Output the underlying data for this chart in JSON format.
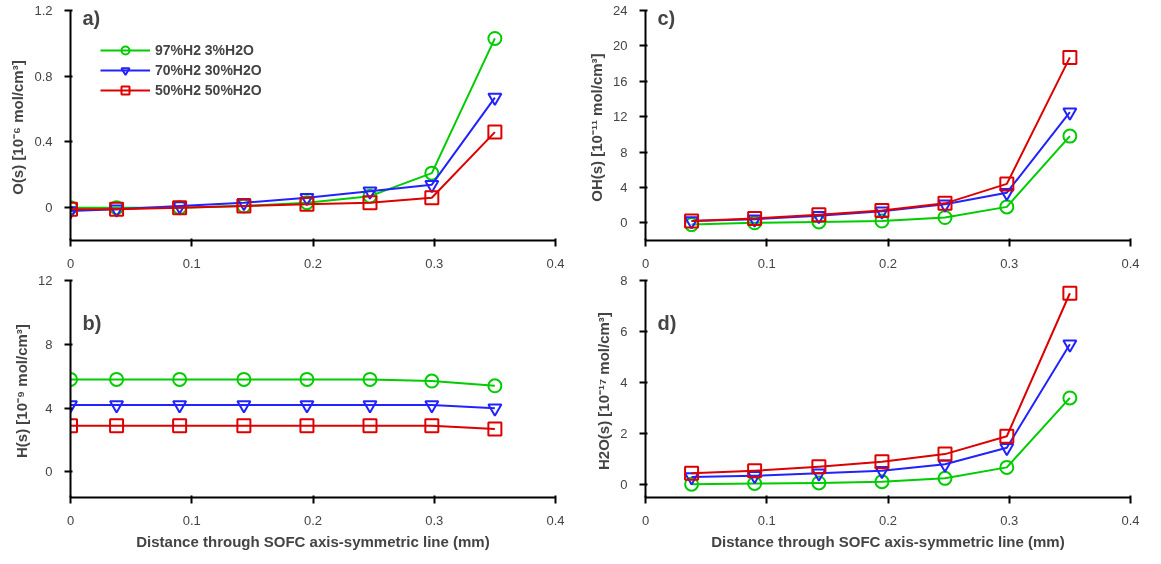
{
  "chart_data": [
    {
      "type": "line",
      "ylabel": "O(s)  [10⁻⁶ mol/cm³]",
      "annotations": [
        "a)"
      ],
      "xlim": [
        0,
        0.4
      ],
      "xticks": [
        0,
        0.1,
        0.2,
        0.3,
        0.4
      ],
      "ylim": [
        -0.2,
        1.2
      ],
      "yticks": [
        0,
        0.4,
        0.8,
        1.2
      ],
      "grid": false,
      "legend": "top left",
      "x": [
        0,
        0.038,
        0.09,
        0.143,
        0.195,
        0.247,
        0.298,
        0.35
      ],
      "series": [
        {
          "name": "97%H2 3%H2O",
          "color": "#00cc00",
          "marker": "circle",
          "values": [
            0,
            0,
            0,
            0.01,
            0.03,
            0.07,
            0.21,
            1.03
          ]
        },
        {
          "name": "70%H2 30%H2O",
          "color": "#2222ff",
          "marker": "triangle",
          "values": [
            -0.02,
            -0.01,
            0.01,
            0.03,
            0.06,
            0.1,
            0.14,
            0.67
          ]
        },
        {
          "name": "50%H2 50%H2O",
          "color": "#dd0000",
          "marker": "square",
          "values": [
            -0.01,
            -0.01,
            0,
            0.01,
            0.02,
            0.03,
            0.06,
            0.46
          ]
        }
      ]
    },
    {
      "type": "line",
      "ylabel": "OH(s)  [10⁻¹¹ mol/cm³]",
      "annotations": [
        "c)"
      ],
      "xlim": [
        0,
        0.4
      ],
      "xticks": [
        0,
        0.1,
        0.2,
        0.3,
        0.4
      ],
      "ylim": [
        -2,
        24
      ],
      "yticks": [
        0,
        4,
        8,
        12,
        16,
        20,
        24
      ],
      "grid": false,
      "x": [
        0.038,
        0.09,
        0.143,
        0.195,
        0.247,
        0.298,
        0.35
      ],
      "series": [
        {
          "color": "#00cc00",
          "marker": "circle",
          "values": [
            -0.2,
            0,
            0.1,
            0.2,
            0.6,
            1.8,
            9.8
          ]
        },
        {
          "color": "#2222ff",
          "marker": "triangle",
          "values": [
            0.2,
            0.4,
            0.8,
            1.3,
            2.1,
            3.4,
            12.5
          ]
        },
        {
          "color": "#dd0000",
          "marker": "square",
          "values": [
            0.2,
            0.5,
            0.9,
            1.4,
            2.2,
            4.4,
            18.7
          ]
        }
      ]
    },
    {
      "type": "line",
      "xlabel": "Distance through SOFC axis-symmetric line (mm)",
      "ylabel": "H(s)  [10⁻⁹ mol/cm³]",
      "annotations": [
        "b)"
      ],
      "xlim": [
        0,
        0.4
      ],
      "xticks": [
        0,
        0.1,
        0.2,
        0.3,
        0.4
      ],
      "ylim": [
        -1.6,
        12
      ],
      "yticks": [
        0,
        4,
        8,
        12
      ],
      "grid": false,
      "x": [
        0,
        0.038,
        0.09,
        0.143,
        0.195,
        0.247,
        0.298,
        0.35
      ],
      "series": [
        {
          "color": "#00cc00",
          "marker": "circle",
          "values": [
            5.8,
            5.8,
            5.8,
            5.8,
            5.8,
            5.8,
            5.7,
            5.4
          ]
        },
        {
          "color": "#2222ff",
          "marker": "triangle",
          "values": [
            4.2,
            4.2,
            4.2,
            4.2,
            4.2,
            4.2,
            4.2,
            4.0
          ]
        },
        {
          "color": "#dd0000",
          "marker": "square",
          "values": [
            2.9,
            2.9,
            2.9,
            2.9,
            2.9,
            2.9,
            2.9,
            2.7
          ]
        }
      ]
    },
    {
      "type": "line",
      "xlabel": "Distance through SOFC axis-symmetric line (mm)",
      "ylabel": "H2O(s)  [10⁻¹⁷ mol/cm³]",
      "annotations": [
        "d)"
      ],
      "xlim": [
        0,
        0.4
      ],
      "xticks": [
        0,
        0.1,
        0.2,
        0.3,
        0.4
      ],
      "ylim": [
        -0.5,
        8
      ],
      "yticks": [
        0,
        2,
        4,
        6,
        8
      ],
      "grid": false,
      "x": [
        0.038,
        0.09,
        0.143,
        0.195,
        0.247,
        0.298,
        0.35
      ],
      "series": [
        {
          "color": "#00cc00",
          "marker": "circle",
          "values": [
            0.02,
            0.05,
            0.07,
            0.12,
            0.25,
            0.68,
            3.4
          ]
        },
        {
          "color": "#2222ff",
          "marker": "triangle",
          "values": [
            0.3,
            0.35,
            0.45,
            0.55,
            0.8,
            1.45,
            5.5
          ]
        },
        {
          "color": "#dd0000",
          "marker": "square",
          "values": [
            0.45,
            0.55,
            0.7,
            0.9,
            1.2,
            1.9,
            7.5
          ]
        }
      ]
    }
  ]
}
